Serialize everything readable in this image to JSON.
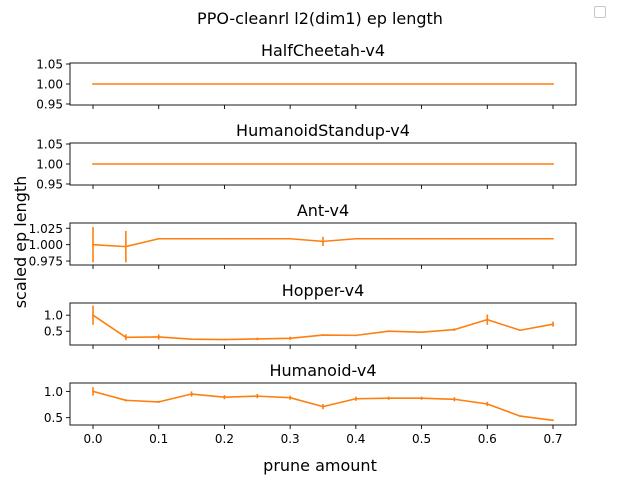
{
  "figure": {
    "suptitle": "PPO-cleanrl l2(dim1) ep length",
    "xlabel": "prune amount",
    "ylabel": "scaled ep length"
  },
  "legend": {
    "visible": true,
    "entries": []
  },
  "colors": {
    "line": "#ff7f0e",
    "axes": "#000000",
    "background": "#ffffff"
  },
  "chart_data": [
    {
      "type": "line",
      "title": "HalfCheetah-v4",
      "x": [
        0.0,
        0.7
      ],
      "series": [
        {
          "values": [
            1.0,
            1.0
          ],
          "err": [
            0,
            0
          ]
        }
      ],
      "xlim": [
        -0.035,
        0.735
      ],
      "ylim": [
        0.9475,
        1.0525
      ],
      "yticks": [
        0.95,
        1.0,
        1.05
      ],
      "ytick_labels": [
        "0.95",
        "1.00",
        "1.05"
      ],
      "xticks": [
        0.0,
        0.1,
        0.2,
        0.3,
        0.4,
        0.5,
        0.6,
        0.7
      ],
      "xtick_labels": [],
      "grid": false
    },
    {
      "type": "line",
      "title": "HumanoidStandup-v4",
      "x": [
        0.0,
        0.7
      ],
      "series": [
        {
          "values": [
            1.0,
            1.0
          ],
          "err": [
            0,
            0
          ]
        }
      ],
      "xlim": [
        -0.035,
        0.735
      ],
      "ylim": [
        0.9475,
        1.0525
      ],
      "yticks": [
        0.95,
        1.0,
        1.05
      ],
      "ytick_labels": [
        "0.95",
        "1.00",
        "1.05"
      ],
      "xticks": [
        0.0,
        0.1,
        0.2,
        0.3,
        0.4,
        0.5,
        0.6,
        0.7
      ],
      "xtick_labels": [],
      "grid": false
    },
    {
      "type": "line",
      "title": "Ant-v4",
      "x": [
        0.0,
        0.05,
        0.1,
        0.15,
        0.2,
        0.25,
        0.3,
        0.35,
        0.4,
        0.45,
        0.5,
        0.55,
        0.6,
        0.65,
        0.7
      ],
      "series": [
        {
          "values": [
            1.0,
            0.997,
            1.009,
            1.009,
            1.009,
            1.009,
            1.009,
            1.005,
            1.009,
            1.009,
            1.009,
            1.009,
            1.009,
            1.009,
            1.009
          ],
          "err": [
            0.027,
            0.024,
            0,
            0,
            0,
            0,
            0,
            0.007,
            0,
            0,
            0,
            0,
            0,
            0,
            0
          ]
        }
      ],
      "xlim": [
        -0.035,
        0.735
      ],
      "ylim": [
        0.969,
        1.033
      ],
      "yticks": [
        0.975,
        1.0,
        1.025
      ],
      "ytick_labels": [
        "0.975",
        "1.000",
        "1.025"
      ],
      "xticks": [
        0.0,
        0.1,
        0.2,
        0.3,
        0.4,
        0.5,
        0.6,
        0.7
      ],
      "xtick_labels": [],
      "grid": false
    },
    {
      "type": "line",
      "title": "Hopper-v4",
      "x": [
        0.0,
        0.05,
        0.1,
        0.15,
        0.2,
        0.25,
        0.3,
        0.35,
        0.4,
        0.45,
        0.5,
        0.55,
        0.6,
        0.65,
        0.7
      ],
      "series": [
        {
          "values": [
            1.0,
            0.31,
            0.32,
            0.25,
            0.24,
            0.26,
            0.28,
            0.38,
            0.37,
            0.5,
            0.47,
            0.55,
            0.86,
            0.53,
            0.72
          ],
          "err": [
            0.3,
            0.09,
            0.08,
            0,
            0,
            0.04,
            0.05,
            0,
            0,
            0,
            0,
            0.04,
            0.16,
            0,
            0.08
          ]
        }
      ],
      "xlim": [
        -0.035,
        0.735
      ],
      "ylim": [
        0.07,
        1.38
      ],
      "yticks": [
        0.5,
        1.0
      ],
      "ytick_labels": [
        "0.5",
        "1.0"
      ],
      "xticks": [
        0.0,
        0.1,
        0.2,
        0.3,
        0.4,
        0.5,
        0.6,
        0.7
      ],
      "xtick_labels": [],
      "grid": false
    },
    {
      "type": "line",
      "title": "Humanoid-v4",
      "x": [
        0.0,
        0.05,
        0.1,
        0.15,
        0.2,
        0.25,
        0.3,
        0.35,
        0.4,
        0.45,
        0.5,
        0.55,
        0.6,
        0.65,
        0.7
      ],
      "series": [
        {
          "values": [
            1.0,
            0.83,
            0.8,
            0.95,
            0.89,
            0.91,
            0.88,
            0.71,
            0.86,
            0.87,
            0.87,
            0.85,
            0.76,
            0.53,
            0.45
          ],
          "err": [
            0.08,
            0.02,
            0.02,
            0.05,
            0.04,
            0.04,
            0.04,
            0.05,
            0.04,
            0.03,
            0.03,
            0.04,
            0.04,
            0,
            0
          ]
        }
      ],
      "xlim": [
        -0.035,
        0.735
      ],
      "ylim": [
        0.36,
        1.16
      ],
      "yticks": [
        0.5,
        1.0
      ],
      "ytick_labels": [
        "0.5",
        "1.0"
      ],
      "xticks": [
        0.0,
        0.1,
        0.2,
        0.3,
        0.4,
        0.5,
        0.6,
        0.7
      ],
      "xtick_labels": [
        "0.0",
        "0.1",
        "0.2",
        "0.3",
        "0.4",
        "0.5",
        "0.6",
        "0.7"
      ],
      "grid": false
    }
  ]
}
